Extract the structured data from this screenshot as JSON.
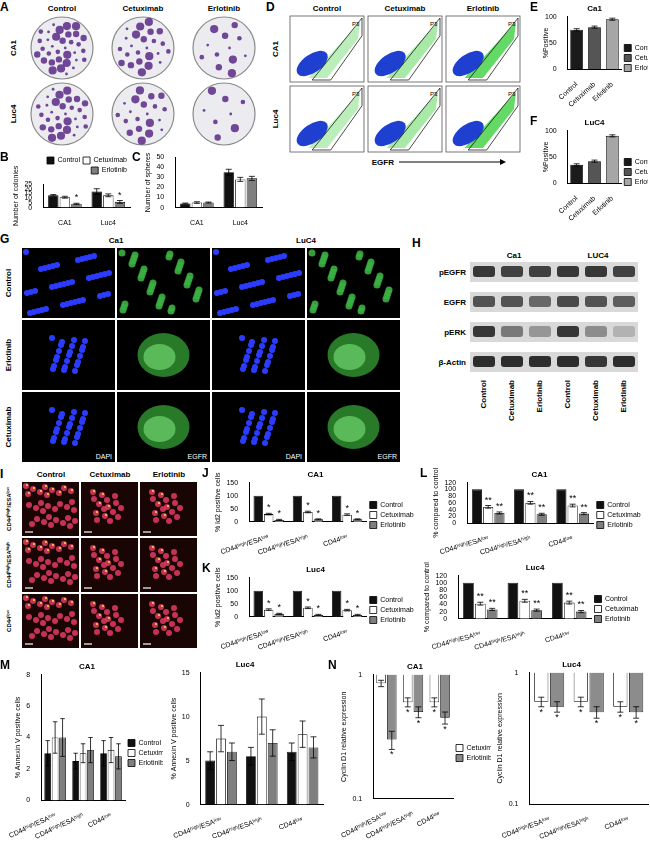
{
  "panels": {
    "A": {
      "letter": "A",
      "columns": [
        "Control",
        "Cetuximab",
        "Erlotinib"
      ],
      "rows": [
        "CA1",
        "Luc4"
      ]
    },
    "D": {
      "letter": "D",
      "columns": [
        "Control",
        "Cetuximab",
        "Erlotinib"
      ],
      "rows": [
        "CA1",
        "Luc4"
      ],
      "x_label": "EGFR",
      "gate": "P3"
    },
    "G": {
      "letter": "G",
      "columns": [
        "Ca1",
        "LuC4"
      ],
      "rows": [
        "Control",
        "Erlotinib",
        "Cetuximab"
      ],
      "stains": [
        "DAPI",
        "EGFR"
      ]
    },
    "H": {
      "letter": "H",
      "columns": [
        "Ca1",
        "LUC4"
      ],
      "rows": [
        "pEGFR",
        "EGFR",
        "pERK",
        "β-Actin"
      ],
      "lanes": [
        "Control",
        "Cetuximab",
        "Erlotinib"
      ]
    },
    "I": {
      "letter": "I",
      "columns": [
        "Control",
        "Cetuximab",
        "Erlotinib"
      ],
      "rows": [
        "CD44ʰⁱᵍʰ/ESAˡᵒʷ",
        "CD44ʰⁱᵍʰ/ESAʰⁱᵍʰ",
        "CD44ˡᵒʷ"
      ]
    }
  },
  "chart_data": [
    {
      "type": "bar",
      "panel": "B",
      "y_label": "Number of colonies",
      "categories": [
        "CA1",
        "Luc4"
      ],
      "series": [
        {
          "name": "Control",
          "color": "#111111",
          "values": [
            13,
            17
          ],
          "errors": [
            0.8,
            3
          ]
        },
        {
          "name": "Cetuximab",
          "color": "#ffffff",
          "values": [
            11,
            13
          ],
          "errors": [
            1,
            1.5
          ]
        },
        {
          "name": "Erlotinib",
          "color": "#7f7f7f",
          "values": [
            4,
            6
          ],
          "errors": [
            0.6,
            1.5
          ],
          "marks": [
            "*",
            "*"
          ]
        }
      ],
      "ylim": [
        0,
        25
      ],
      "yticks": [
        0,
        5,
        10,
        15,
        20,
        25
      ],
      "grid": false,
      "legend": "top"
    },
    {
      "type": "bar",
      "panel": "C",
      "y_label": "Number of spheres",
      "categories": [
        "CA1",
        "Luc4"
      ],
      "series": [
        {
          "name": "Control",
          "color": "#111111",
          "values": [
            4,
            35
          ],
          "errors": [
            0.5,
            3
          ]
        },
        {
          "name": "Cetuximab",
          "color": "#ffffff",
          "values": [
            5,
            28
          ],
          "errors": [
            0.8,
            2
          ]
        },
        {
          "name": "Erlotinib",
          "color": "#7f7f7f",
          "values": [
            5,
            29
          ],
          "errors": [
            0.5,
            2
          ]
        }
      ],
      "ylim": [
        0,
        50
      ],
      "yticks": [
        0,
        10,
        20,
        30,
        40,
        50
      ],
      "grid": false
    },
    {
      "type": "bar",
      "panel": "E",
      "title": "Ca1",
      "y_label": "%Positive",
      "categories": [
        "Control",
        "Cetuximab",
        "Erlotinib"
      ],
      "values": [
        75,
        80,
        95
      ],
      "errors": [
        2,
        2,
        2
      ],
      "colors": [
        "#1a1a1a",
        "#555555",
        "#a6a6a6"
      ],
      "ylim": [
        0,
        100
      ],
      "yticks": [
        0,
        50,
        100
      ],
      "grid": false,
      "legend": "right"
    },
    {
      "type": "bar",
      "panel": "F",
      "title": "LuC4",
      "y_label": "%Positive",
      "categories": [
        "Control",
        "Cetuximab",
        "Erlotinib"
      ],
      "values": [
        35,
        42,
        90
      ],
      "errors": [
        2,
        2,
        2
      ],
      "colors": [
        "#1a1a1a",
        "#555555",
        "#a6a6a6"
      ],
      "ylim": [
        0,
        100
      ],
      "yticks": [
        0,
        50,
        100
      ],
      "grid": false,
      "legend": "right"
    },
    {
      "type": "bar",
      "panel": "J",
      "title": "CA1",
      "y_label": "% Id2 positive cells",
      "categories": [
        "CD44ʰⁱᵍʰ/ESAˡᵒʷ",
        "CD44ʰⁱᵍʰ/ESAʰⁱᵍʰ",
        "CD44ˡᵒʷ"
      ],
      "series": [
        {
          "name": "Control",
          "color": "#111111",
          "values": [
            100,
            100,
            100
          ]
        },
        {
          "name": "Cetuximab",
          "color": "#ffffff",
          "values": [
            30,
            38,
            28
          ],
          "errors": [
            3,
            3,
            3
          ],
          "marks": [
            "*",
            "*",
            "*"
          ]
        },
        {
          "name": "Erlotinib",
          "color": "#7f7f7f",
          "values": [
            8,
            10,
            10
          ],
          "errors": [
            2,
            2,
            2
          ],
          "marks": [
            "*",
            "*",
            "*"
          ]
        }
      ],
      "ylim": [
        0,
        150
      ],
      "yticks": [
        0,
        50,
        100,
        150
      ],
      "grid": false,
      "legend": "right"
    },
    {
      "type": "bar",
      "panel": "K",
      "title": "Luc4",
      "y_label": "% Id2 positive cells",
      "categories": [
        "CD44ʰⁱᵍʰ/ESAˡᵒʷ",
        "CD44ʰⁱᵍʰ/ESAʰⁱᵍʰ",
        "CD44ˡᵒʷ"
      ],
      "series": [
        {
          "name": "Control",
          "color": "#111111",
          "values": [
            100,
            100,
            100
          ]
        },
        {
          "name": "Cetuximab",
          "color": "#ffffff",
          "values": [
            28,
            35,
            26
          ],
          "errors": [
            3,
            3,
            3
          ],
          "marks": [
            "*",
            "*",
            "*"
          ]
        },
        {
          "name": "Erlotinib",
          "color": "#7f7f7f",
          "values": [
            12,
            8,
            8
          ],
          "errors": [
            2,
            2,
            2
          ],
          "marks": [
            "*",
            "*",
            "*"
          ]
        }
      ],
      "ylim": [
        0,
        150
      ],
      "yticks": [
        0,
        50,
        100,
        150
      ],
      "grid": false,
      "legend": "right"
    },
    {
      "type": "bar",
      "panel": "L",
      "title": "CA1",
      "y_label": "% compared to control",
      "categories": [
        "CD44ʰⁱᵍʰ/ESAˡᵒʷ",
        "CD44ʰⁱᵍʰ/ESAʰⁱᵍʰ",
        "CD44ˡᵒʷ"
      ],
      "series": [
        {
          "name": "Control",
          "color": "#111111",
          "values": [
            100,
            100,
            100
          ]
        },
        {
          "name": "Cetuximab",
          "color": "#ffffff",
          "values": [
            48,
            60,
            52
          ],
          "errors": [
            4,
            4,
            4
          ],
          "marks": [
            "**",
            "**",
            "**"
          ]
        },
        {
          "name": "Erlotinib",
          "color": "#7f7f7f",
          "values": [
            30,
            26,
            28
          ],
          "errors": [
            3,
            3,
            3
          ],
          "marks": [
            "**",
            "**",
            "**"
          ]
        }
      ],
      "ylim": [
        0,
        120
      ],
      "yticks": [
        0,
        20,
        40,
        60,
        80,
        100,
        120
      ],
      "grid": false,
      "legend": "right"
    },
    {
      "type": "bar",
      "title": "Luc4",
      "y_label": "% compared to control",
      "categories": [
        "CD44ʰⁱᵍʰ/ESAˡᵒʷ",
        "CD44ʰⁱᵍʰ/ESAʰⁱᵍʰ",
        "CD44ˡᵒʷ"
      ],
      "series": [
        {
          "name": "Control",
          "color": "#111111",
          "values": [
            100,
            100,
            100
          ]
        },
        {
          "name": "Cetuximab",
          "color": "#ffffff",
          "values": [
            42,
            50,
            45
          ],
          "errors": [
            4,
            4,
            4
          ],
          "marks": [
            "**",
            "**",
            "**"
          ]
        },
        {
          "name": "Erlotinib",
          "color": "#7f7f7f",
          "values": [
            26,
            24,
            20
          ],
          "errors": [
            3,
            3,
            3
          ],
          "marks": [
            "**",
            "**",
            "**"
          ]
        }
      ],
      "ylim": [
        0,
        120
      ],
      "yticks": [
        0,
        20,
        40,
        60,
        80,
        100,
        120
      ],
      "grid": false,
      "legend": "right"
    },
    {
      "type": "bar",
      "panel": "M",
      "title": "CA1",
      "y_label": "% Annexin V positive cells",
      "categories": [
        "CD44ʰⁱᵍʰ/ESAˡᵒʷ",
        "CD44ʰⁱᵍʰ/ESAʰⁱᵍʰ",
        "CD44ˡᵒʷ"
      ],
      "series": [
        {
          "name": "Control",
          "color": "#111111",
          "values": [
            3,
            2.5,
            3
          ],
          "errors": [
            0.8,
            0.5,
            0.8
          ]
        },
        {
          "name": "Cetuximab",
          "color": "#ffffff",
          "values": [
            4,
            3,
            3.2
          ],
          "errors": [
            1,
            0.6,
            0.8
          ]
        },
        {
          "name": "Erlotinib",
          "color": "#7f7f7f",
          "values": [
            4,
            3.2,
            2.8
          ],
          "errors": [
            1.2,
            0.8,
            0.8
          ]
        }
      ],
      "ylim": [
        0,
        8
      ],
      "yticks": [
        0,
        2,
        4,
        6,
        8
      ],
      "grid": false,
      "legend": "right"
    },
    {
      "type": "bar",
      "title": "Luc4",
      "y_label": "% Annexin V positive cells",
      "categories": [
        "CD44ʰⁱᵍʰ/ESAˡᵒʷ",
        "CD44ʰⁱᵍʰ/ESAʰⁱᵍʰ",
        "CD44ˡᵒʷ"
      ],
      "series": [
        {
          "name": "Control",
          "color": "#111111",
          "values": [
            5,
            5.5,
            6
          ],
          "errors": [
            1,
            1,
            1
          ]
        },
        {
          "name": "Cetuximab",
          "color": "#ffffff",
          "values": [
            7.5,
            10,
            8
          ],
          "errors": [
            1.5,
            2,
            1.5
          ]
        },
        {
          "name": "Erlotinib",
          "color": "#7f7f7f",
          "values": [
            6,
            7,
            6.5
          ],
          "errors": [
            1,
            1.5,
            1.2
          ]
        }
      ],
      "ylim": [
        0,
        15
      ],
      "yticks": [
        0,
        5,
        10,
        15
      ],
      "grid": false
    },
    {
      "type": "bar",
      "panel": "N",
      "title": "CA1",
      "y_label": "Cyclin D1 relative expression",
      "categories": [
        "CD44ʰⁱᵍʰ/ESAˡᵒʷ",
        "CD44ʰⁱᵍʰ/ESAʰⁱᵍʰ",
        "CD44ˡᵒʷ"
      ],
      "series": [
        {
          "name": "Cetuximab",
          "color": "#ffffff",
          "values": [
            0.85,
            0.6,
            0.6
          ],
          "errors": [
            0.05,
            0.05,
            0.05
          ],
          "marks": [
            null,
            "*",
            "*"
          ]
        },
        {
          "name": "Erlotinib",
          "color": "#8c8c8c",
          "values": [
            0.3,
            0.5,
            0.45
          ],
          "errors": [
            0.05,
            0.05,
            0.05
          ],
          "marks": [
            "*",
            "*",
            "*"
          ]
        }
      ],
      "log": "y",
      "ylim": [
        0.1,
        1
      ],
      "yticks": [
        0.1,
        1
      ],
      "grid": false,
      "legend": "right"
    },
    {
      "type": "bar",
      "title": "Luc4",
      "y_label": "Cyclin D1 relative expression",
      "categories": [
        "CD44ʰⁱᵍʰ/ESAˡᵒʷ",
        "CD44ʰⁱᵍʰ/ESAʰⁱᵍʰ",
        "CD44ˡᵒʷ"
      ],
      "series": [
        {
          "name": "Cetuximab",
          "color": "#ffffff",
          "values": [
            0.6,
            0.6,
            0.55
          ],
          "errors": [
            0.05,
            0.05,
            0.05
          ],
          "marks": [
            "*",
            "*",
            "*"
          ]
        },
        {
          "name": "Erlotinib",
          "color": "#8c8c8c",
          "values": [
            0.55,
            0.5,
            0.5
          ],
          "errors": [
            0.05,
            0.05,
            0.05
          ],
          "marks": [
            "*",
            "*",
            "*"
          ]
        }
      ],
      "log": "y",
      "ylim": [
        0.1,
        1
      ],
      "yticks": [
        0.1,
        1
      ],
      "grid": false
    }
  ]
}
